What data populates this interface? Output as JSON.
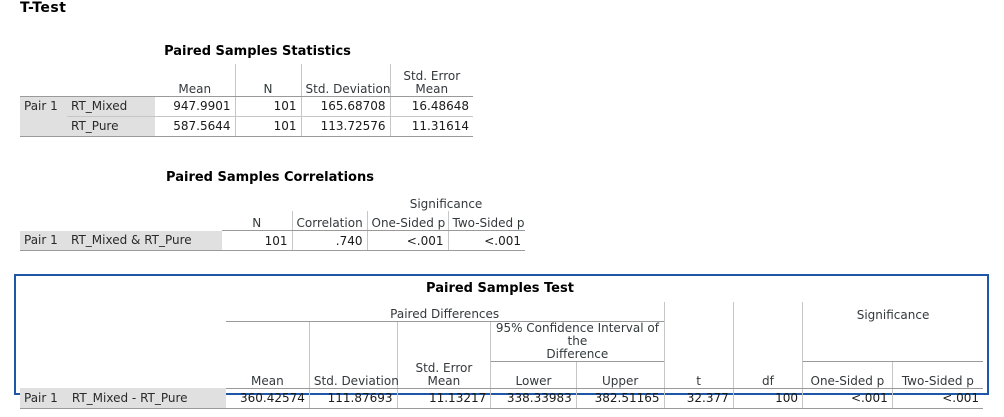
{
  "page": {
    "heading": "T-Test"
  },
  "stats": {
    "title": "Paired Samples Statistics",
    "headers": {
      "mean": "Mean",
      "n": "N",
      "sd": "Std. Deviation",
      "se": "Std. Error\nMean"
    },
    "pair_label": "Pair 1",
    "rows": [
      {
        "var": "RT_Mixed",
        "mean": "947.9901",
        "n": "101",
        "sd": "165.68708",
        "se": "16.48648"
      },
      {
        "var": "RT_Pure",
        "mean": "587.5644",
        "n": "101",
        "sd": "113.72576",
        "se": "11.31614"
      }
    ]
  },
  "corr": {
    "title": "Paired Samples Correlations",
    "headers": {
      "significance": "Significance",
      "n": "N",
      "correlation": "Correlation",
      "one_sided": "One-Sided p",
      "two_sided": "Two-Sided p"
    },
    "row": {
      "pair": "Pair 1",
      "var": "RT_Mixed & RT_Pure",
      "n": "101",
      "correlation": ".740",
      "one_sided": "<.001",
      "two_sided": "<.001"
    }
  },
  "test": {
    "title": "Paired Samples Test",
    "headers": {
      "paired_differences": "Paired Differences",
      "ci": "95% Confidence Interval of the\nDifference",
      "significance": "Significance",
      "mean": "Mean",
      "sd": "Std. Deviation",
      "se": "Std. Error\nMean",
      "lower": "Lower",
      "upper": "Upper",
      "t": "t",
      "df": "df",
      "one_sided": "One-Sided p",
      "two_sided": "Two-Sided p"
    },
    "row": {
      "pair": "Pair 1",
      "var": "RT_Mixed - RT_Pure",
      "mean": "360.42574",
      "sd": "111.87693",
      "se": "11.13217",
      "lower": "338.33983",
      "upper": "382.51165",
      "t": "32.377",
      "df": "100",
      "one_sided": "<.001",
      "two_sided": "<.001"
    }
  }
}
